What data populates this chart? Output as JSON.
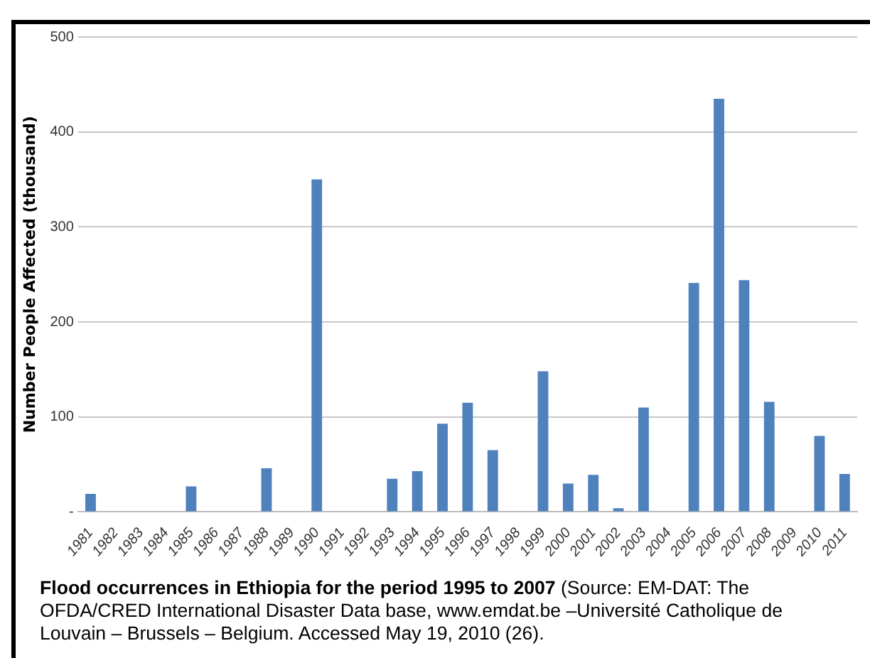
{
  "chart_data": {
    "type": "bar",
    "title": "Flood occurrences in Ethiopia for the period 1995 to 2007",
    "annotations": [
      "(Source: EM-DAT: The OFDA/CRED International Disaster Data base, www.emdat.be –Université Catholique de Louvain – Brussels – Belgium. Accessed May 19, 2010 (26)."
    ],
    "ylabel": "Number People Affected (thousand)",
    "categories": [
      "1981",
      "1982",
      "1983",
      "1984",
      "1985",
      "1986",
      "1987",
      "1988",
      "1989",
      "1990",
      "1991",
      "1992",
      "1993",
      "1994",
      "1995",
      "1996",
      "1997",
      "1998",
      "1999",
      "2000",
      "2001",
      "2002",
      "2003",
      "2004",
      "2005",
      "2006",
      "2007",
      "2008",
      "2009",
      "2010",
      "2011"
    ],
    "values": [
      19,
      0,
      0,
      0,
      27,
      0,
      0,
      46,
      0,
      350,
      0,
      0,
      35,
      43,
      93,
      115,
      65,
      0,
      148,
      30,
      39,
      4,
      110,
      0,
      241,
      435,
      244,
      116,
      0,
      80,
      40
    ],
    "color": "#4f81bd",
    "ylim": [
      0,
      500
    ],
    "yticks": [
      {
        "value": 0,
        "label": "-"
      },
      100,
      200,
      300,
      400,
      500
    ],
    "grid": "y",
    "legend": false
  }
}
